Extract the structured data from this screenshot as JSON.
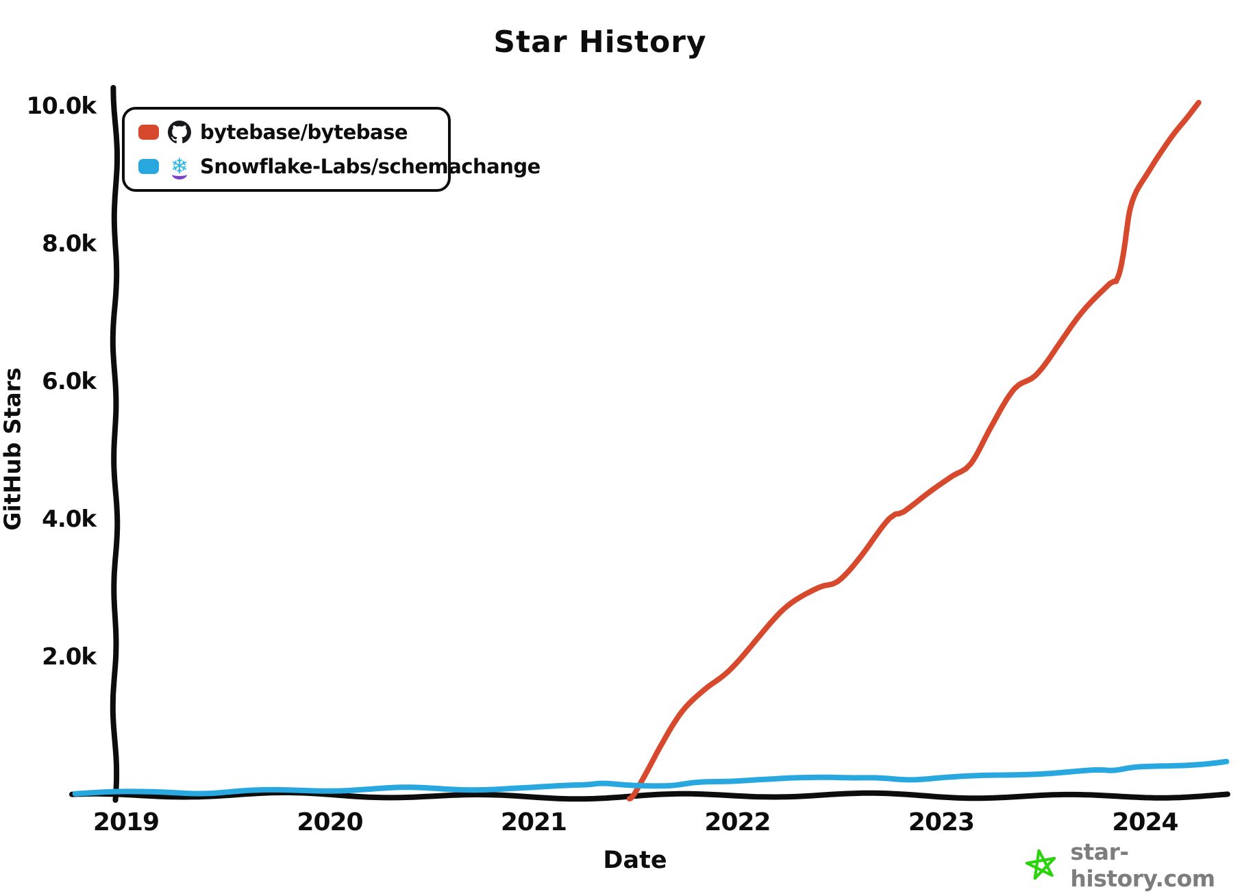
{
  "title": "Star History",
  "legend": {
    "items": [
      {
        "label": "bytebase/bytebase",
        "swatch_color": "#d6492c",
        "icon": "github-octocat"
      },
      {
        "label": "Snowflake-Labs/schemachange",
        "swatch_color": "#29a8df",
        "icon": "snowflake"
      }
    ]
  },
  "watermark": {
    "text": "star-history.com",
    "text_color": "#7d7d7d",
    "star_color": "#2bd30c"
  },
  "chart_data": {
    "type": "line",
    "title": "Star History",
    "xlabel": "Date",
    "ylabel": "GitHub Stars",
    "grid": false,
    "legend_position": "top-left",
    "background_color": "#ffffff",
    "axis_color": "#0d0d0d",
    "xlim": [
      2018.75,
      2024.45
    ],
    "ylim": [
      0,
      10000
    ],
    "x_ticks": [
      2019,
      2020,
      2021,
      2022,
      2023,
      2024
    ],
    "x_tick_labels": [
      "2019",
      "2020",
      "2021",
      "2022",
      "2023",
      "2024"
    ],
    "y_ticks": [
      2000,
      4000,
      6000,
      8000,
      10000
    ],
    "y_tick_labels": [
      "2.0k",
      "4.0k",
      "6.0k",
      "8.0k",
      "10.0k"
    ],
    "series": [
      {
        "name": "bytebase/bytebase",
        "color": "#d6492c",
        "points": [
          [
            2021.47,
            -60
          ],
          [
            2021.49,
            0
          ],
          [
            2021.55,
            350
          ],
          [
            2021.62,
            720
          ],
          [
            2021.73,
            1200
          ],
          [
            2021.84,
            1530
          ],
          [
            2021.95,
            1800
          ],
          [
            2022.1,
            2280
          ],
          [
            2022.25,
            2720
          ],
          [
            2022.4,
            3000
          ],
          [
            2022.49,
            3100
          ],
          [
            2022.6,
            3450
          ],
          [
            2022.75,
            4000
          ],
          [
            2022.82,
            4100
          ],
          [
            2022.95,
            4430
          ],
          [
            2023.05,
            4650
          ],
          [
            2023.14,
            4820
          ],
          [
            2023.25,
            5350
          ],
          [
            2023.36,
            5900
          ],
          [
            2023.46,
            6100
          ],
          [
            2023.58,
            6550
          ],
          [
            2023.7,
            7000
          ],
          [
            2023.83,
            7420
          ],
          [
            2023.87,
            7550
          ],
          [
            2023.93,
            8530
          ],
          [
            2024.02,
            9050
          ],
          [
            2024.12,
            9550
          ],
          [
            2024.2,
            9850
          ],
          [
            2024.26,
            10060
          ]
        ]
      },
      {
        "name": "Snowflake-Labs/schemachange",
        "color": "#29a8df",
        "points": [
          [
            2018.75,
            15
          ],
          [
            2019.0,
            30
          ],
          [
            2019.2,
            48
          ],
          [
            2019.4,
            40
          ],
          [
            2019.6,
            55
          ],
          [
            2019.85,
            62
          ],
          [
            2020.1,
            70
          ],
          [
            2020.35,
            80
          ],
          [
            2020.6,
            76
          ],
          [
            2020.85,
            92
          ],
          [
            2021.05,
            105
          ],
          [
            2021.25,
            150
          ],
          [
            2021.35,
            185
          ],
          [
            2021.5,
            155
          ],
          [
            2021.67,
            125
          ],
          [
            2021.8,
            160
          ],
          [
            2021.95,
            185
          ],
          [
            2022.1,
            225
          ],
          [
            2022.25,
            242
          ],
          [
            2022.4,
            230
          ],
          [
            2022.55,
            224
          ],
          [
            2022.7,
            246
          ],
          [
            2022.85,
            236
          ],
          [
            2023.0,
            256
          ],
          [
            2023.15,
            266
          ],
          [
            2023.3,
            282
          ],
          [
            2023.45,
            312
          ],
          [
            2023.6,
            342
          ],
          [
            2023.75,
            352
          ],
          [
            2023.85,
            332
          ],
          [
            2023.95,
            376
          ],
          [
            2024.1,
            412
          ],
          [
            2024.22,
            436
          ],
          [
            2024.32,
            458
          ],
          [
            2024.4,
            478
          ]
        ]
      }
    ]
  }
}
